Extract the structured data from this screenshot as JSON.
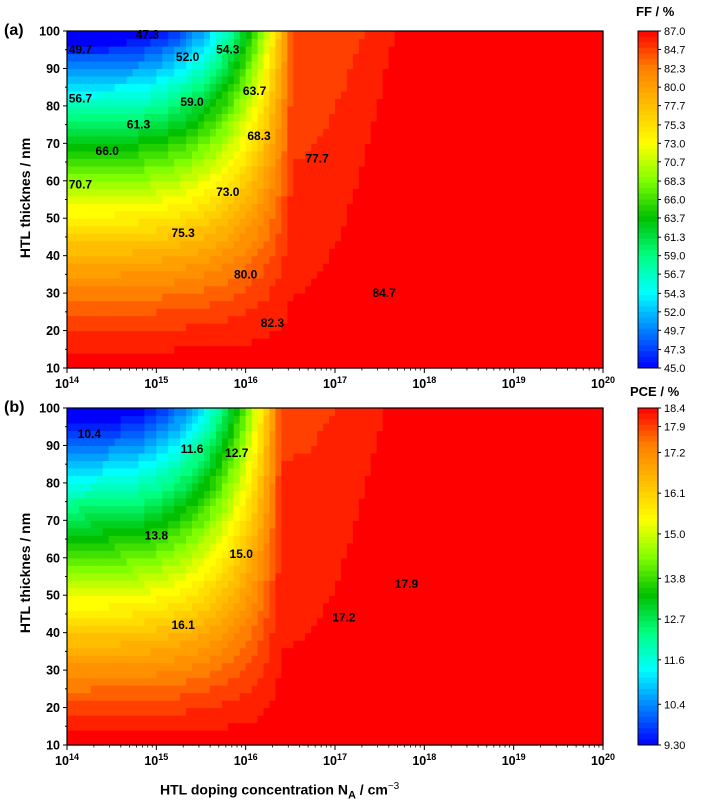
{
  "chart_data": [
    {
      "panel": "(a)",
      "type": "heatmap",
      "title": "",
      "xlabel": "HTL doping concentration N_A / cm^-3",
      "ylabel": "HTL thicknes / nm",
      "x_scale": "log",
      "xlim": [
        100000000000000.0,
        1e+20
      ],
      "ylim": [
        10,
        100
      ],
      "x_tick_labels": [
        "10^14",
        "10^15",
        "10^16",
        "10^17",
        "10^18",
        "10^19",
        "10^20"
      ],
      "y_tick_labels": [
        "10",
        "20",
        "30",
        "40",
        "50",
        "60",
        "70",
        "80",
        "90",
        "100"
      ],
      "colorbar": {
        "title": "FF / %",
        "min": 45.0,
        "max": 87.0,
        "ticks": [
          "87.0",
          "84.7",
          "82.3",
          "80.0",
          "77.7",
          "75.3",
          "73.0",
          "70.7",
          "68.3",
          "66.0",
          "63.7",
          "61.3",
          "59.0",
          "56.7",
          "54.3",
          "52.0",
          "49.7",
          "47.3",
          "45.0"
        ]
      },
      "contour_labels": [
        {
          "text": "47.3",
          "x_log": 14.9,
          "y": 99
        },
        {
          "text": "49.7",
          "x_log": 14.15,
          "y": 95
        },
        {
          "text": "52.0",
          "x_log": 15.35,
          "y": 93
        },
        {
          "text": "54.3",
          "x_log": 15.8,
          "y": 95
        },
        {
          "text": "56.7",
          "x_log": 14.15,
          "y": 82
        },
        {
          "text": "59.0",
          "x_log": 15.4,
          "y": 81
        },
        {
          "text": "63.7",
          "x_log": 16.1,
          "y": 84
        },
        {
          "text": "61.3",
          "x_log": 14.8,
          "y": 75
        },
        {
          "text": "68.3",
          "x_log": 16.15,
          "y": 72
        },
        {
          "text": "66.0",
          "x_log": 14.45,
          "y": 68
        },
        {
          "text": "77.7",
          "x_log": 16.8,
          "y": 66
        },
        {
          "text": "70.7",
          "x_log": 14.15,
          "y": 59
        },
        {
          "text": "73.0",
          "x_log": 15.8,
          "y": 57
        },
        {
          "text": "75.3",
          "x_log": 15.3,
          "y": 46
        },
        {
          "text": "80.0",
          "x_log": 16.0,
          "y": 35
        },
        {
          "text": "84.7",
          "x_log": 17.55,
          "y": 30
        },
        {
          "text": "82.3",
          "x_log": 16.3,
          "y": 22
        }
      ]
    },
    {
      "panel": "(b)",
      "type": "heatmap",
      "title": "",
      "xlabel": "HTL doping concentration N_A / cm^-3",
      "ylabel": "HTL thicknes / nm",
      "x_scale": "log",
      "xlim": [
        100000000000000.0,
        1e+20
      ],
      "ylim": [
        10,
        100
      ],
      "x_tick_labels": [
        "10^14",
        "10^15",
        "10^16",
        "10^17",
        "10^18",
        "10^19",
        "10^20"
      ],
      "y_tick_labels": [
        "10",
        "20",
        "30",
        "40",
        "50",
        "60",
        "70",
        "80",
        "90",
        "100"
      ],
      "colorbar": {
        "title": "PCE / %",
        "min": 9.3,
        "max": 18.4,
        "ticks": [
          "18.4",
          "17.9",
          "17.2",
          "16.1",
          "15.0",
          "13.8",
          "12.7",
          "11.6",
          "10.4",
          "9.30"
        ]
      },
      "contour_labels": [
        {
          "text": "10.4",
          "x_log": 14.25,
          "y": 93
        },
        {
          "text": "11.6",
          "x_log": 15.4,
          "y": 89
        },
        {
          "text": "12.7",
          "x_log": 15.9,
          "y": 88
        },
        {
          "text": "13.8",
          "x_log": 15.0,
          "y": 66
        },
        {
          "text": "15.0",
          "x_log": 15.95,
          "y": 61
        },
        {
          "text": "17.9",
          "x_log": 17.8,
          "y": 53
        },
        {
          "text": "16.1",
          "x_log": 15.3,
          "y": 42
        },
        {
          "text": "17.2",
          "x_log": 17.1,
          "y": 44
        }
      ]
    }
  ],
  "labels": {
    "panel_a": "(a)",
    "panel_b": "(b)",
    "ylabel": "HTL thicknes / nm",
    "xlabel_prefix": "HTL doping concentration N",
    "xlabel_sub": "A",
    "xlabel_suffix": " / cm",
    "xlabel_sup": "−3",
    "cb_a_title": "FF / %",
    "cb_b_title": "PCE / %"
  },
  "colormap": [
    "#0000ff",
    "#0080ff",
    "#00ffff",
    "#00ff80",
    "#00c000",
    "#80ff00",
    "#ffff00",
    "#ffbf00",
    "#ff8000",
    "#ff0000"
  ]
}
